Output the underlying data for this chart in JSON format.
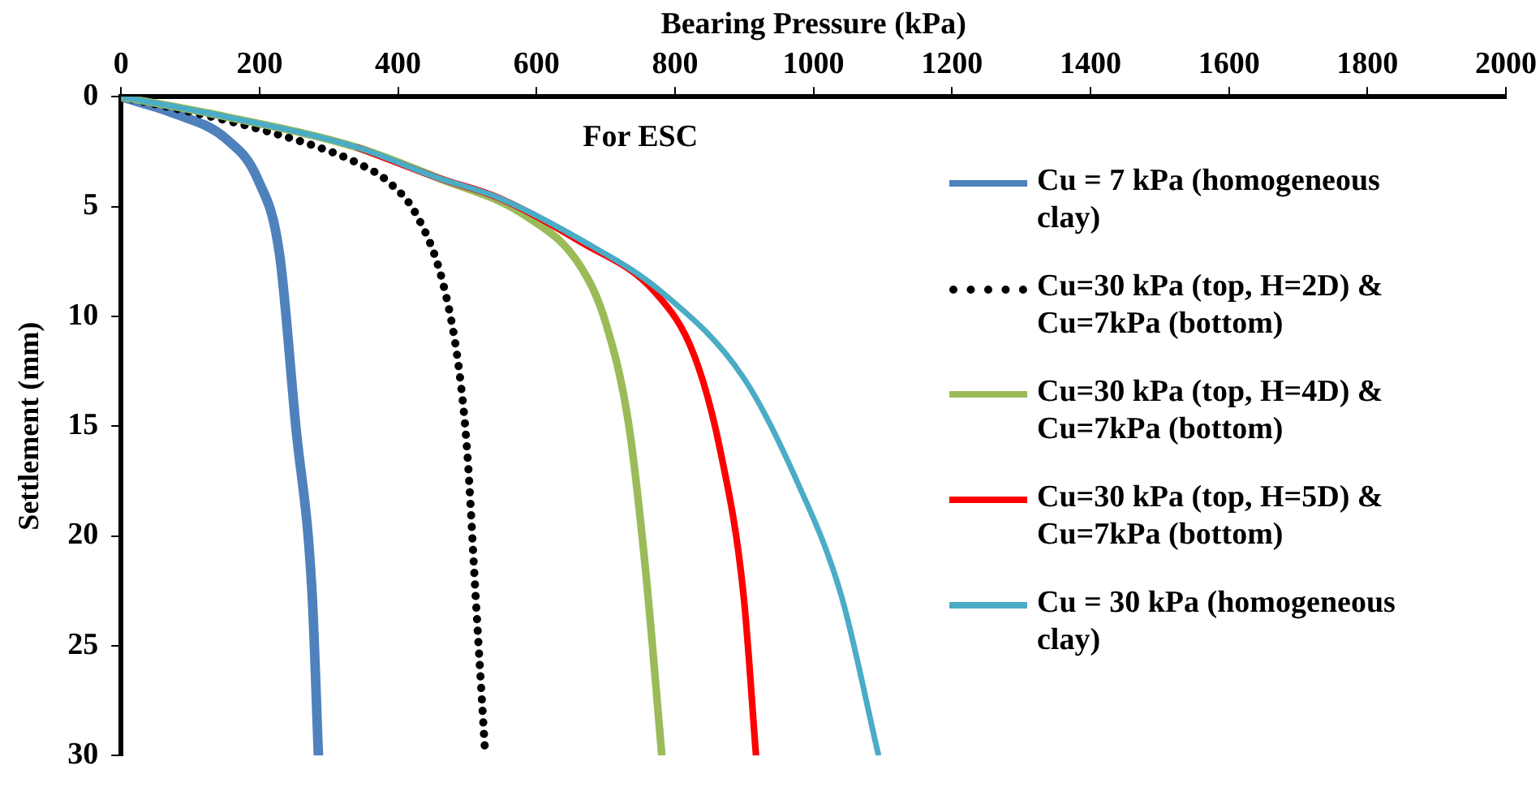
{
  "chart_data": {
    "type": "line",
    "xlabel": "Bearing Pressure (kPa)",
    "ylabel": "Settlement (mm)",
    "annotations": [
      "For ESC"
    ],
    "xlim": [
      0,
      2000
    ],
    "xticks": [
      0,
      200,
      400,
      600,
      800,
      1000,
      1200,
      1400,
      1600,
      1800,
      2000
    ],
    "ylim": [
      30,
      0
    ],
    "yticks": [
      0,
      5,
      10,
      15,
      20,
      25,
      30
    ],
    "grid": false,
    "legend": "right",
    "marker": "none",
    "series": [
      {
        "name": "Cu = 7 kPa (homogeneous clay)",
        "color": "#4f81bd",
        "line_style": "solid",
        "x": [
          0,
          80,
          151,
          198,
          229,
          252,
          276,
          285
        ],
        "values": [
          0,
          0.8,
          1.9,
          3.8,
          7.2,
          14.9,
          22.7,
          30
        ]
      },
      {
        "name": "Cu=30 kPa (top, H=2D) & Cu=7kPa (bottom)",
        "color": "#000000",
        "line_style": "dotted",
        "x": [
          0,
          167,
          285,
          340,
          387,
          427,
          465,
          488,
          500,
          512,
          526
        ],
        "values": [
          0,
          1.2,
          2.3,
          3.0,
          3.9,
          5.4,
          8.5,
          12.4,
          16.2,
          22.7,
          30
        ]
      },
      {
        "name": "Cu=30 kPa (top, H=4D) & Cu=7kPa (bottom)",
        "color": "#9bbb59",
        "line_style": "solid",
        "x": [
          0,
          150,
          340,
          458,
          583,
          663,
          700,
          733,
          757,
          781
        ],
        "values": [
          0,
          0.9,
          2.3,
          3.7,
          5.4,
          7.7,
          10.3,
          14.9,
          21.4,
          30
        ]
      },
      {
        "name": "Cu=30 kPa (top, H=5D) & Cu=7kPa (bottom)",
        "color": "#ff0000",
        "line_style": "solid",
        "x": [
          340,
          458,
          545,
          663,
          771,
          828,
          866,
          899,
          917
        ],
        "values": [
          2.3,
          3.7,
          4.6,
          6.6,
          8.9,
          11.8,
          16.2,
          22.7,
          30
        ]
      },
      {
        "name": "Cu = 30 kPa (homogeneous clay)",
        "color": "#4bacc6",
        "line_style": "solid",
        "x": [
          0,
          150,
          340,
          458,
          545,
          663,
          781,
          899,
          976,
          1040,
          1094
        ],
        "values": [
          0,
          0.9,
          2.3,
          3.7,
          4.6,
          6.5,
          8.9,
          12.8,
          17.5,
          22.7,
          30
        ]
      }
    ]
  }
}
